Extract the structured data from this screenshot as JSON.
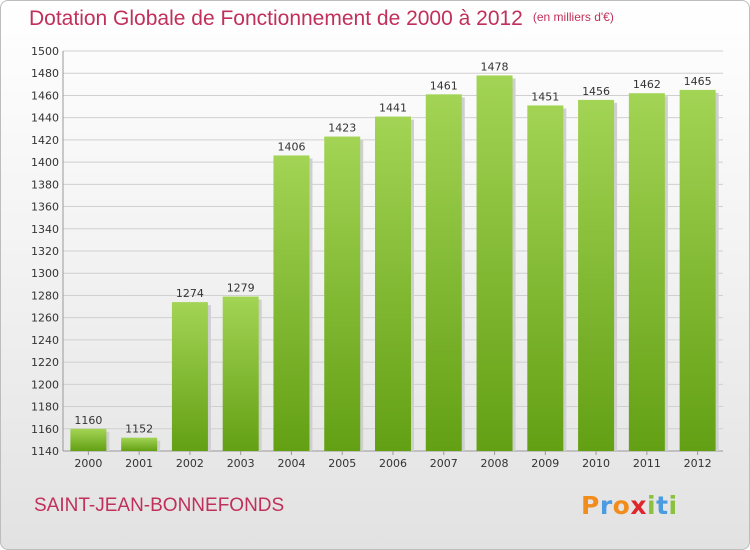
{
  "page": {
    "title": "Dotation Globale de Fonctionnement de 2000 à 2012",
    "subtitle": "(en milliers d'€)",
    "commune": "SAINT-JEAN-BONNEFONDS",
    "brand": [
      "P",
      "r",
      "o",
      "x",
      "i",
      "t",
      "i"
    ],
    "brand_colors": [
      "#f28c1c",
      "#4a9be0",
      "#f28c1c",
      "#e0262c",
      "#8cc13f",
      "#4a9be0",
      "#8cc13f"
    ]
  },
  "chart_data": {
    "type": "bar",
    "title": "Dotation Globale de Fonctionnement de 2000 à 2012",
    "subtitle": "(en milliers d'€)",
    "categories": [
      "2000",
      "2001",
      "2002",
      "2003",
      "2004",
      "2005",
      "2006",
      "2007",
      "2008",
      "2009",
      "2010",
      "2011",
      "2012"
    ],
    "values": [
      1160,
      1152,
      1274,
      1279,
      1406,
      1423,
      1441,
      1461,
      1478,
      1451,
      1456,
      1462,
      1465
    ],
    "ylim": [
      1140,
      1500
    ],
    "yticks": [
      1140,
      1160,
      1180,
      1200,
      1220,
      1240,
      1260,
      1280,
      1300,
      1320,
      1340,
      1360,
      1380,
      1400,
      1420,
      1440,
      1460,
      1480,
      1500
    ],
    "grid": true,
    "bar_color_top": "#a3d455",
    "bar_color_bottom": "#63a014"
  }
}
